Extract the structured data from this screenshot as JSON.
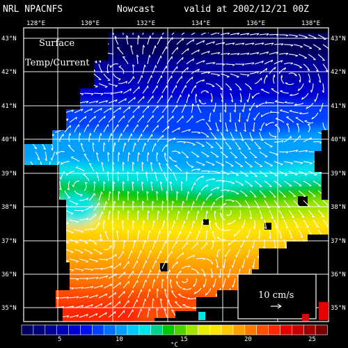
{
  "header": {
    "title": "NRL NPACNFS",
    "mode": "Nowcast",
    "valid": "valid at 2002/12/21 00Z"
  },
  "map_labels": {
    "line1": "Surface",
    "line2": "Temp/Current"
  },
  "lon_labels": [
    "128°E",
    "130°E",
    "132°E",
    "134°E",
    "136°E",
    "138°E"
  ],
  "lat_labels": [
    "43°N",
    "42°N",
    "41°N",
    "40°N",
    "39°N",
    "38°N",
    "37°N",
    "36°N",
    "35°N"
  ],
  "scale_vector": {
    "label": "10 cm/s"
  },
  "colorbar": {
    "unit": "°C",
    "tick_labels": [
      "5",
      "10",
      "15",
      "20",
      "25"
    ],
    "colors": [
      "#000060",
      "#00007a",
      "#000096",
      "#0000b4",
      "#0000d2",
      "#0010f0",
      "#0040ff",
      "#0070ff",
      "#00a0ff",
      "#00c8ff",
      "#00e6e6",
      "#00d28c",
      "#00c800",
      "#50d200",
      "#a0e600",
      "#e6f000",
      "#ffe600",
      "#ffc800",
      "#ffa000",
      "#ff7800",
      "#ff5000",
      "#ff2800",
      "#e60000",
      "#c80000",
      "#a00000",
      "#780000"
    ]
  },
  "colors": {
    "land": "#000000",
    "grid": "#ffffff"
  }
}
